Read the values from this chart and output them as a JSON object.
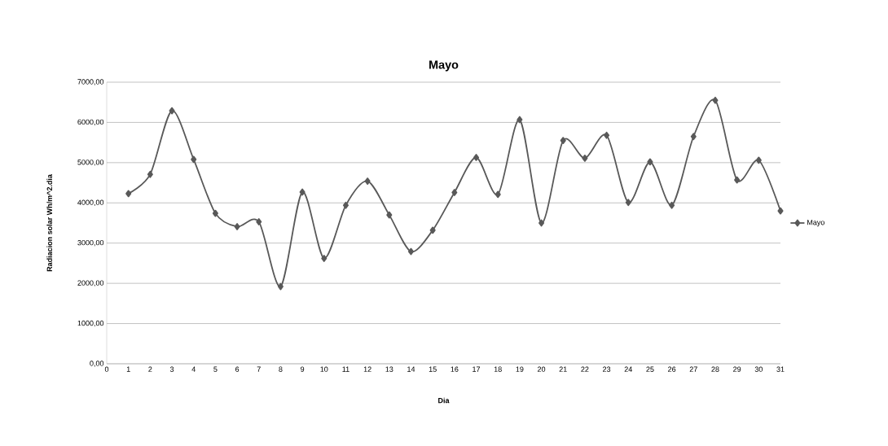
{
  "chart_data": {
    "type": "line",
    "title": "Mayo",
    "xlabel": "Dia",
    "ylabel": "Radiacion solar Wh/m^2.dia",
    "x": [
      1,
      2,
      3,
      4,
      5,
      6,
      7,
      8,
      9,
      10,
      11,
      12,
      13,
      14,
      15,
      16,
      17,
      18,
      19,
      20,
      21,
      22,
      23,
      24,
      25,
      26,
      27,
      28,
      29,
      30,
      31
    ],
    "series": [
      {
        "name": "Mayo",
        "color": "#595959",
        "values": [
          4230,
          4710,
          6290,
          5080,
          3740,
          3410,
          3530,
          1920,
          4270,
          2620,
          3940,
          4540,
          3700,
          2790,
          3320,
          4260,
          5130,
          4210,
          6070,
          3500,
          5550,
          5110,
          5680,
          4010,
          5020,
          3940,
          5650,
          6550,
          4570,
          5060,
          3800
        ]
      }
    ],
    "xlim": [
      0,
      31
    ],
    "xticks": [
      0,
      1,
      2,
      3,
      4,
      5,
      6,
      7,
      8,
      9,
      10,
      11,
      12,
      13,
      14,
      15,
      16,
      17,
      18,
      19,
      20,
      21,
      22,
      23,
      24,
      25,
      26,
      27,
      28,
      29,
      30,
      31
    ],
    "ylim": [
      0,
      7000
    ],
    "yticks": [
      {
        "value": 0,
        "label": "0,00"
      },
      {
        "value": 1000,
        "label": "1000,00"
      },
      {
        "value": 2000,
        "label": "2000,00"
      },
      {
        "value": 3000,
        "label": "3000,00"
      },
      {
        "value": 4000,
        "label": "4000,00"
      },
      {
        "value": 5000,
        "label": "5000,00"
      },
      {
        "value": 6000,
        "label": "6000,00"
      },
      {
        "value": 7000,
        "label": "7000,00"
      }
    ],
    "grid": "y",
    "legend": "right",
    "marker": "diamond",
    "line_style": "solid"
  }
}
